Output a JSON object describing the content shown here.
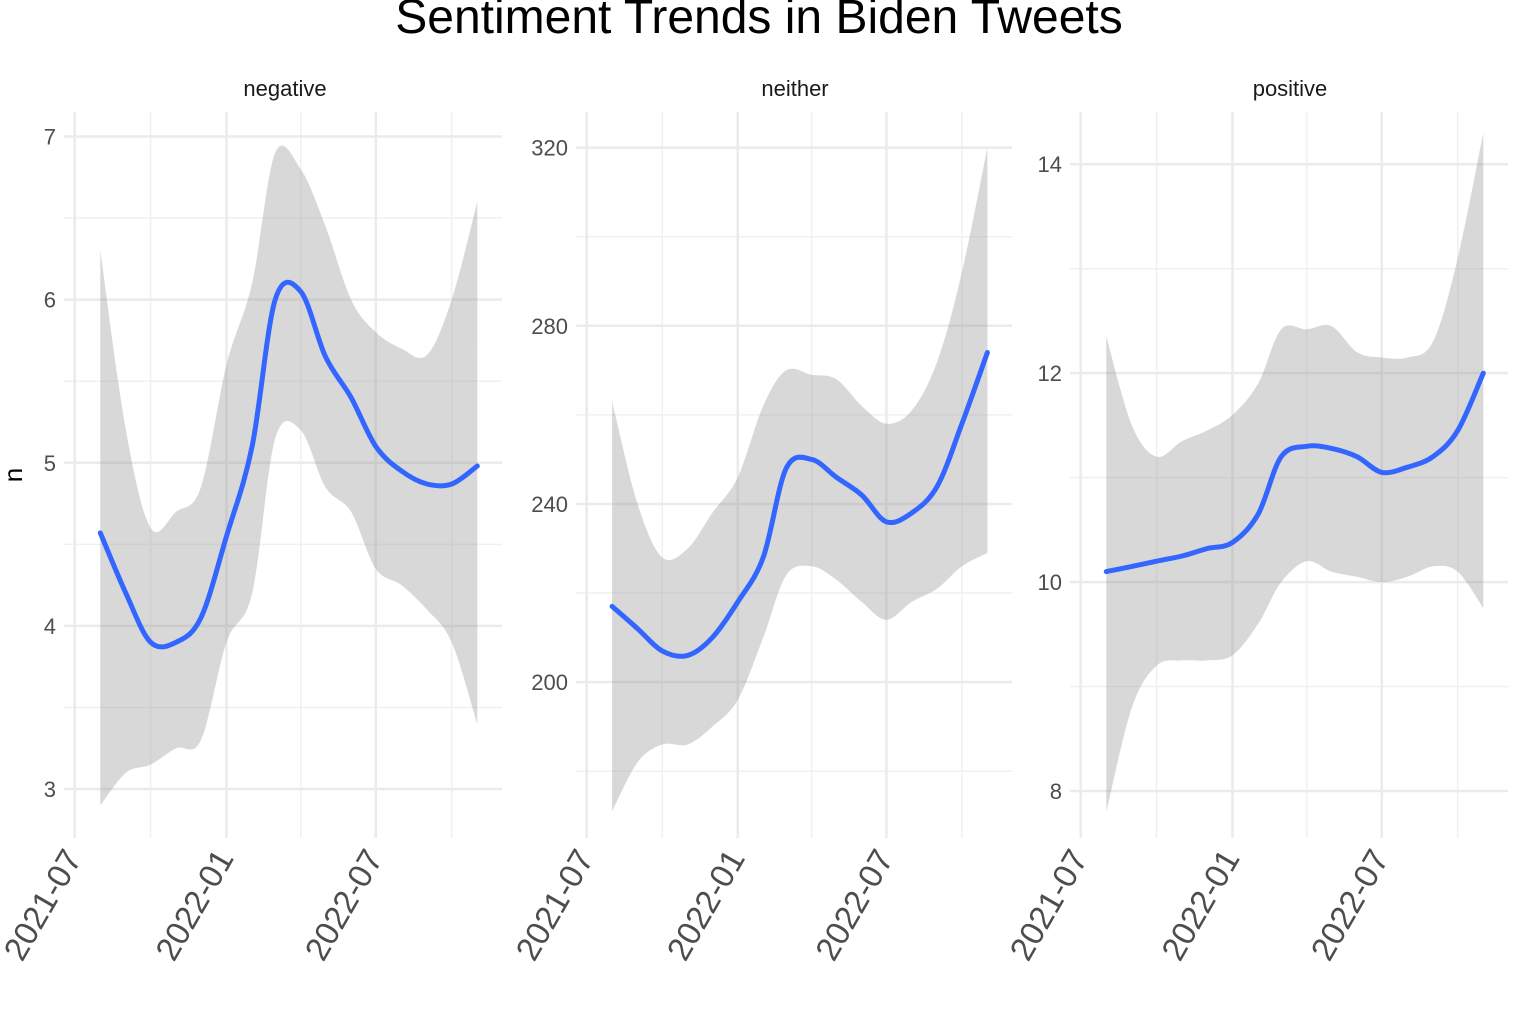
{
  "chart_data": {
    "type": "line",
    "title": "Sentiment Trends in Biden Tweets",
    "ylabel": "n",
    "xlabel": "",
    "x_tick_labels": [
      "2021-07",
      "2022-01",
      "2022-07"
    ],
    "x_dates": [
      "2021-08-01",
      "2021-09-01",
      "2021-10-01",
      "2021-11-01",
      "2021-12-01",
      "2022-01-01",
      "2022-02-01",
      "2022-03-01",
      "2022-04-01",
      "2022-05-01",
      "2022-06-01",
      "2022-07-01",
      "2022-08-01",
      "2022-09-01",
      "2022-10-01",
      "2022-11-01"
    ],
    "series_color": "#3366ff",
    "band_color": "#999999",
    "panels": [
      {
        "name": "negative",
        "y_ticks": [
          3,
          4,
          5,
          6,
          7
        ],
        "ylim": [
          2.7,
          7.15
        ],
        "values": [
          4.57,
          4.2,
          3.9,
          3.9,
          4.05,
          4.55,
          5.1,
          6.0,
          6.05,
          5.65,
          5.4,
          5.1,
          4.95,
          4.87,
          4.87,
          4.98
        ],
        "ci_upper": [
          6.3,
          5.2,
          4.6,
          4.7,
          4.85,
          5.6,
          6.1,
          6.9,
          6.8,
          6.45,
          6.0,
          5.8,
          5.7,
          5.66,
          6.0,
          6.6
        ],
        "ci_lower": [
          2.9,
          3.1,
          3.15,
          3.25,
          3.3,
          3.9,
          4.2,
          5.15,
          5.2,
          4.85,
          4.7,
          4.35,
          4.25,
          4.1,
          3.9,
          3.4
        ]
      },
      {
        "name": "neither",
        "y_ticks": [
          200,
          240,
          280,
          320
        ],
        "ylim": [
          165,
          328
        ],
        "values": [
          217,
          212,
          207,
          206,
          210,
          218,
          228,
          248,
          250,
          246,
          242,
          236,
          238,
          244,
          258,
          274
        ],
        "ci_upper": [
          263,
          240,
          228,
          230,
          238,
          246,
          262,
          270,
          269,
          268,
          262,
          258,
          261,
          272,
          292,
          320
        ],
        "ci_lower": [
          171,
          182,
          186,
          186,
          190,
          196,
          210,
          224,
          226,
          223,
          218,
          214,
          218,
          221,
          226,
          229
        ]
      },
      {
        "name": "positive",
        "y_ticks": [
          8,
          10,
          12,
          14
        ],
        "ylim": [
          7.55,
          14.5
        ],
        "values": [
          10.1,
          10.15,
          10.2,
          10.25,
          10.32,
          10.38,
          10.65,
          11.2,
          11.3,
          11.28,
          11.2,
          11.05,
          11.1,
          11.2,
          11.45,
          12.0
        ],
        "ci_upper": [
          12.35,
          11.5,
          11.2,
          11.35,
          11.45,
          11.6,
          11.9,
          12.42,
          12.42,
          12.45,
          12.2,
          12.15,
          12.15,
          12.3,
          13.1,
          14.3
        ],
        "ci_lower": [
          7.8,
          8.8,
          9.2,
          9.25,
          9.25,
          9.3,
          9.6,
          10.0,
          10.2,
          10.1,
          10.05,
          10.0,
          10.05,
          10.15,
          10.1,
          9.75
        ]
      }
    ]
  }
}
